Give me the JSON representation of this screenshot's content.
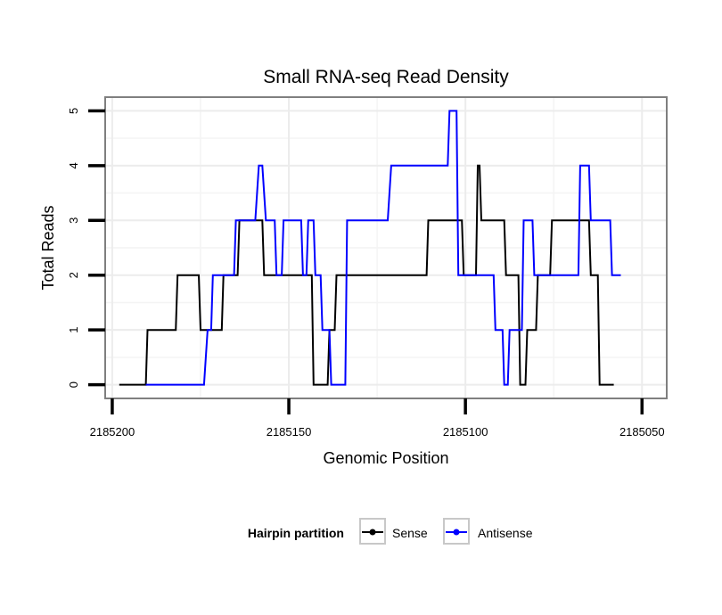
{
  "chart_data": {
    "type": "line",
    "title": "Small RNA-seq Read Density",
    "xlabel": "Genomic Position",
    "ylabel": "Total Reads",
    "xlim": [
      2185202,
      2185043
    ],
    "ylim": [
      -0.25,
      5.25
    ],
    "x_reversed": true,
    "x_ticks": [
      2185200,
      2185150,
      2185100,
      2185050
    ],
    "x_tick_labels": [
      "2185200",
      "2185150",
      "2185100",
      "2185050"
    ],
    "y_ticks": [
      0,
      1,
      2,
      3,
      4,
      5
    ],
    "y_tick_labels": [
      "0",
      "1",
      "2",
      "3",
      "4",
      "5"
    ],
    "grid": true,
    "legend": {
      "title": "Hairpin partition",
      "position": "bottom",
      "entries": [
        "Sense",
        "Antisense"
      ]
    },
    "series": [
      {
        "name": "Sense",
        "color": "#000000",
        "x": [
          2185198,
          2185190.5,
          2185190,
          2185182,
          2185181.5,
          2185175.5,
          2185175,
          2185169,
          2185168.5,
          2185164.5,
          2185164,
          2185157.5,
          2185157,
          2185143.5,
          2185143,
          2185139,
          2185138.5,
          2185137,
          2185136.5,
          2185111,
          2185110.5,
          2185101,
          2185100.5,
          2185097,
          2185096.5,
          2185096,
          2185095.5,
          2185089,
          2185088.5,
          2185085,
          2185084.5,
          2185083,
          2185082.5,
          2185080,
          2185079.5,
          2185076,
          2185075.5,
          2185065,
          2185064.5,
          2185062.5,
          2185062,
          2185058
        ],
        "y": [
          0,
          0,
          1,
          1,
          2,
          2,
          1,
          1,
          2,
          2,
          3,
          3,
          2,
          2,
          0,
          0,
          1,
          1,
          2,
          2,
          3,
          3,
          2,
          2,
          4,
          4,
          3,
          3,
          2,
          2,
          0,
          0,
          1,
          1,
          2,
          2,
          3,
          3,
          2,
          2,
          0,
          0
        ]
      },
      {
        "name": "Antisense",
        "color": "#0000ff",
        "x": [
          2185190.5,
          2185174,
          2185173,
          2185172,
          2185171.5,
          2185165.5,
          2185165,
          2185159.5,
          2185158.5,
          2185157.5,
          2185156.5,
          2185154,
          2185153.5,
          2185152,
          2185151.5,
          2185146.5,
          2185146,
          2185145,
          2185144.5,
          2185143,
          2185142.5,
          2185141,
          2185140.5,
          2185138.5,
          2185138,
          2185134,
          2185133.5,
          2185122,
          2185121,
          2185105,
          2185104.5,
          2185102.5,
          2185102,
          2185092,
          2185091.5,
          2185089.5,
          2185089,
          2185088,
          2185087.5,
          2185084,
          2185083.5,
          2185081,
          2185080.5,
          2185068,
          2185067.5,
          2185065,
          2185064.5,
          2185059,
          2185058.5,
          2185056
        ],
        "y": [
          0,
          0,
          1,
          1,
          2,
          2,
          3,
          3,
          4,
          4,
          3,
          3,
          2,
          2,
          3,
          3,
          2,
          2,
          3,
          3,
          2,
          2,
          1,
          1,
          0,
          0,
          3,
          3,
          4,
          4,
          5,
          5,
          2,
          2,
          1,
          1,
          0,
          0,
          1,
          1,
          3,
          3,
          2,
          2,
          4,
          4,
          3,
          3,
          2,
          2
        ]
      }
    ]
  }
}
